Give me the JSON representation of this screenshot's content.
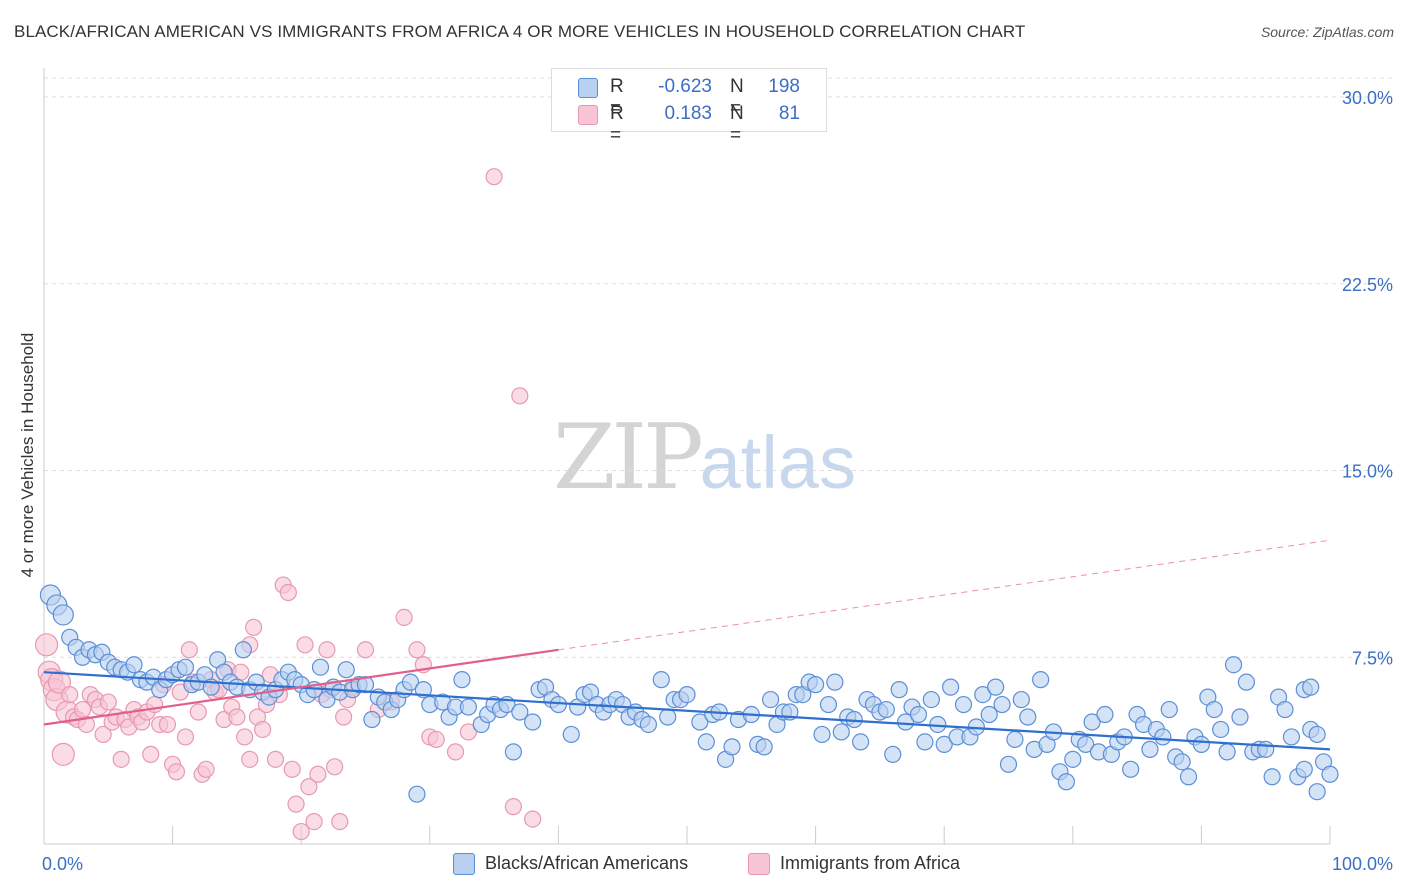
{
  "header": {
    "title": "BLACK/AFRICAN AMERICAN VS IMMIGRANTS FROM AFRICA 4 OR MORE VEHICLES IN HOUSEHOLD CORRELATION CHART",
    "source": "Source: ZipAtlas.com"
  },
  "legend": {
    "series": [
      {
        "r_label": "R =",
        "r_value": "-0.623",
        "n_label": "N =",
        "n_value": "198"
      },
      {
        "r_label": "R =",
        "r_value": "0.183",
        "n_label": "N =",
        "n_value": "81"
      }
    ]
  },
  "bottom_legend": {
    "blue": "Blacks/African Americans",
    "pink": "Immigrants from Africa"
  },
  "watermark": {
    "zip": "ZIP",
    "atlas": "atlas"
  },
  "colors": {
    "blue_fill": "#b9d0f0",
    "blue_stroke": "#5b8fd6",
    "blue_line": "#2f6fce",
    "pink_fill": "#f7c5d4",
    "pink_stroke": "#e898b2",
    "pink_line": "#e0608a",
    "grid": "#dddddd",
    "tick_label": "#3a6fc4"
  },
  "chart_data": {
    "type": "scatter",
    "title": "BLACK/AFRICAN AMERICAN VS IMMIGRANTS FROM AFRICA 4 OR MORE VEHICLES IN HOUSEHOLD CORRELATION CHART",
    "xlabel": "",
    "ylabel": "4 or more Vehicles in Household",
    "xlim": [
      0,
      100
    ],
    "ylim": [
      0,
      31
    ],
    "x_tick_labels": [
      "0.0%",
      "100.0%"
    ],
    "y_ticks": [
      7.5,
      15.0,
      22.5,
      30.0
    ],
    "y_tick_labels": [
      "7.5%",
      "15.0%",
      "22.5%",
      "30.0%"
    ],
    "series": [
      {
        "name": "Blacks/African Americans",
        "r": -0.623,
        "n": 198,
        "trend": {
          "x": [
            0,
            100
          ],
          "y": [
            6.9,
            3.8
          ]
        },
        "points": [
          [
            0.5,
            10.0
          ],
          [
            1.0,
            9.6
          ],
          [
            1.5,
            9.2
          ],
          [
            2.0,
            8.3
          ],
          [
            2.5,
            7.9
          ],
          [
            3.0,
            7.5
          ],
          [
            3.5,
            7.8
          ],
          [
            4.0,
            7.6
          ],
          [
            4.5,
            7.7
          ],
          [
            5.0,
            7.3
          ],
          [
            5.5,
            7.1
          ],
          [
            6.0,
            7.0
          ],
          [
            6.5,
            6.9
          ],
          [
            7.0,
            7.2
          ],
          [
            7.5,
            6.6
          ],
          [
            8.0,
            6.5
          ],
          [
            8.5,
            6.7
          ],
          [
            9.0,
            6.2
          ],
          [
            9.5,
            6.6
          ],
          [
            10.0,
            6.8
          ],
          [
            10.5,
            7.0
          ],
          [
            11.0,
            7.1
          ],
          [
            11.5,
            6.4
          ],
          [
            12.0,
            6.5
          ],
          [
            12.5,
            6.8
          ],
          [
            13.0,
            6.3
          ],
          [
            13.5,
            7.4
          ],
          [
            14.0,
            6.9
          ],
          [
            14.5,
            6.5
          ],
          [
            15.0,
            6.3
          ],
          [
            15.5,
            7.8
          ],
          [
            16.0,
            6.2
          ],
          [
            16.5,
            6.5
          ],
          [
            17.0,
            6.1
          ],
          [
            17.5,
            5.9
          ],
          [
            18.0,
            6.2
          ],
          [
            18.5,
            6.6
          ],
          [
            19.0,
            6.9
          ],
          [
            19.5,
            6.6
          ],
          [
            20.0,
            6.4
          ],
          [
            20.5,
            6.0
          ],
          [
            21.0,
            6.2
          ],
          [
            21.5,
            7.1
          ],
          [
            22.0,
            5.8
          ],
          [
            22.5,
            6.3
          ],
          [
            23.0,
            6.1
          ],
          [
            23.5,
            7.0
          ],
          [
            24.0,
            6.2
          ],
          [
            24.5,
            6.4
          ],
          [
            25.0,
            6.4
          ],
          [
            25.5,
            5.0
          ],
          [
            26.0,
            5.9
          ],
          [
            26.5,
            5.7
          ],
          [
            27.0,
            5.4
          ],
          [
            27.5,
            5.8
          ],
          [
            28.0,
            6.2
          ],
          [
            28.5,
            6.5
          ],
          [
            29.0,
            2.0
          ],
          [
            29.5,
            6.2
          ],
          [
            30.0,
            5.6
          ],
          [
            31.0,
            5.7
          ],
          [
            31.5,
            5.1
          ],
          [
            32.0,
            5.5
          ],
          [
            32.5,
            6.6
          ],
          [
            33.0,
            5.5
          ],
          [
            34.0,
            4.8
          ],
          [
            34.5,
            5.2
          ],
          [
            35.0,
            5.6
          ],
          [
            35.5,
            5.4
          ],
          [
            36.0,
            5.6
          ],
          [
            36.5,
            3.7
          ],
          [
            37.0,
            5.3
          ],
          [
            38.0,
            4.9
          ],
          [
            38.5,
            6.2
          ],
          [
            39.0,
            6.3
          ],
          [
            39.5,
            5.8
          ],
          [
            40.0,
            5.6
          ],
          [
            41.0,
            4.4
          ],
          [
            41.5,
            5.5
          ],
          [
            42.0,
            6.0
          ],
          [
            42.5,
            6.1
          ],
          [
            43.0,
            5.6
          ],
          [
            43.5,
            5.3
          ],
          [
            44.0,
            5.6
          ],
          [
            44.5,
            5.8
          ],
          [
            45.0,
            5.6
          ],
          [
            45.5,
            5.1
          ],
          [
            46.0,
            5.3
          ],
          [
            46.5,
            5.0
          ],
          [
            47.0,
            4.8
          ],
          [
            48.0,
            6.6
          ],
          [
            48.5,
            5.1
          ],
          [
            49.0,
            5.8
          ],
          [
            49.5,
            5.8
          ],
          [
            50.0,
            6.0
          ],
          [
            51.0,
            4.9
          ],
          [
            51.5,
            4.1
          ],
          [
            52.0,
            5.2
          ],
          [
            52.5,
            5.3
          ],
          [
            53.0,
            3.4
          ],
          [
            53.5,
            3.9
          ],
          [
            54.0,
            5.0
          ],
          [
            55.0,
            5.2
          ],
          [
            55.5,
            4.0
          ],
          [
            56.0,
            3.9
          ],
          [
            56.5,
            5.8
          ],
          [
            57.0,
            4.8
          ],
          [
            57.5,
            5.3
          ],
          [
            58.0,
            5.3
          ],
          [
            58.5,
            6.0
          ],
          [
            59.0,
            6.0
          ],
          [
            59.5,
            6.5
          ],
          [
            60.0,
            6.4
          ],
          [
            60.5,
            4.4
          ],
          [
            61.0,
            5.6
          ],
          [
            61.5,
            6.5
          ],
          [
            62.0,
            4.5
          ],
          [
            62.5,
            5.1
          ],
          [
            63.0,
            5.0
          ],
          [
            63.5,
            4.1
          ],
          [
            64.0,
            5.8
          ],
          [
            64.5,
            5.6
          ],
          [
            65.0,
            5.3
          ],
          [
            65.5,
            5.4
          ],
          [
            66.0,
            3.6
          ],
          [
            66.5,
            6.2
          ],
          [
            67.0,
            4.9
          ],
          [
            67.5,
            5.5
          ],
          [
            68.0,
            5.2
          ],
          [
            68.5,
            4.1
          ],
          [
            69.0,
            5.8
          ],
          [
            69.5,
            4.8
          ],
          [
            70.0,
            4.0
          ],
          [
            70.5,
            6.3
          ],
          [
            71.0,
            4.3
          ],
          [
            71.5,
            5.6
          ],
          [
            72.0,
            4.3
          ],
          [
            72.5,
            4.7
          ],
          [
            73.0,
            6.0
          ],
          [
            73.5,
            5.2
          ],
          [
            74.0,
            6.3
          ],
          [
            74.5,
            5.6
          ],
          [
            75.0,
            3.2
          ],
          [
            75.5,
            4.2
          ],
          [
            76.0,
            5.8
          ],
          [
            76.5,
            5.1
          ],
          [
            77.0,
            3.8
          ],
          [
            77.5,
            6.6
          ],
          [
            78.0,
            4.0
          ],
          [
            78.5,
            4.5
          ],
          [
            79.0,
            2.9
          ],
          [
            79.5,
            2.5
          ],
          [
            80.0,
            3.4
          ],
          [
            80.5,
            4.2
          ],
          [
            81.0,
            4.0
          ],
          [
            81.5,
            4.9
          ],
          [
            82.0,
            3.7
          ],
          [
            82.5,
            5.2
          ],
          [
            83.0,
            3.6
          ],
          [
            83.5,
            4.1
          ],
          [
            84.0,
            4.3
          ],
          [
            84.5,
            3.0
          ],
          [
            85.0,
            5.2
          ],
          [
            85.5,
            4.8
          ],
          [
            86.0,
            3.8
          ],
          [
            86.5,
            4.6
          ],
          [
            87.0,
            4.3
          ],
          [
            87.5,
            5.4
          ],
          [
            88.0,
            3.5
          ],
          [
            88.5,
            3.3
          ],
          [
            89.0,
            2.7
          ],
          [
            89.5,
            4.3
          ],
          [
            90.0,
            4.0
          ],
          [
            90.5,
            5.9
          ],
          [
            91.0,
            5.4
          ],
          [
            91.5,
            4.6
          ],
          [
            92.0,
            3.7
          ],
          [
            92.5,
            7.2
          ],
          [
            93.0,
            5.1
          ],
          [
            93.5,
            6.5
          ],
          [
            94.0,
            3.7
          ],
          [
            94.5,
            3.8
          ],
          [
            95.0,
            3.8
          ],
          [
            95.5,
            2.7
          ],
          [
            96.0,
            5.9
          ],
          [
            96.5,
            5.4
          ],
          [
            97.0,
            4.3
          ],
          [
            97.5,
            2.7
          ],
          [
            98.0,
            3.0
          ],
          [
            98.5,
            4.6
          ],
          [
            99.0,
            2.1
          ],
          [
            99.5,
            3.3
          ],
          [
            100.0,
            2.8
          ],
          [
            98.0,
            6.2
          ],
          [
            98.5,
            6.3
          ],
          [
            99.0,
            4.4
          ]
        ]
      },
      {
        "name": "Immigrants from Africa",
        "r": 0.183,
        "n": 81,
        "trend": {
          "x": [
            0,
            40
          ],
          "y": [
            4.8,
            7.8
          ],
          "x_ext": [
            40,
            100
          ],
          "y_ext": [
            7.8,
            12.2
          ]
        },
        "points": [
          [
            0.2,
            8.0
          ],
          [
            0.4,
            6.9
          ],
          [
            0.6,
            6.6
          ],
          [
            0.8,
            6.2
          ],
          [
            1.0,
            5.8
          ],
          [
            1.2,
            6.5
          ],
          [
            1.5,
            3.6
          ],
          [
            1.8,
            5.3
          ],
          [
            2.0,
            6.0
          ],
          [
            2.3,
            5.1
          ],
          [
            2.6,
            5.0
          ],
          [
            3.0,
            5.4
          ],
          [
            3.3,
            4.8
          ],
          [
            3.6,
            6.0
          ],
          [
            4.0,
            5.8
          ],
          [
            4.3,
            5.5
          ],
          [
            4.6,
            4.4
          ],
          [
            5.0,
            5.7
          ],
          [
            5.3,
            4.9
          ],
          [
            5.6,
            5.1
          ],
          [
            6.0,
            3.4
          ],
          [
            6.3,
            5.0
          ],
          [
            6.6,
            4.7
          ],
          [
            7.0,
            5.4
          ],
          [
            7.3,
            5.1
          ],
          [
            7.6,
            4.9
          ],
          [
            8.0,
            5.3
          ],
          [
            8.3,
            3.6
          ],
          [
            8.6,
            5.6
          ],
          [
            9.0,
            4.8
          ],
          [
            9.3,
            6.4
          ],
          [
            9.6,
            4.8
          ],
          [
            10.0,
            3.2
          ],
          [
            10.3,
            2.9
          ],
          [
            10.6,
            6.1
          ],
          [
            11.0,
            4.3
          ],
          [
            11.3,
            7.8
          ],
          [
            11.6,
            6.5
          ],
          [
            12.0,
            5.3
          ],
          [
            12.3,
            2.8
          ],
          [
            12.6,
            3.0
          ],
          [
            13.0,
            6.6
          ],
          [
            13.3,
            6.1
          ],
          [
            13.6,
            6.2
          ],
          [
            14.0,
            5.0
          ],
          [
            14.3,
            7.0
          ],
          [
            14.6,
            5.5
          ],
          [
            15.0,
            5.1
          ],
          [
            15.3,
            6.9
          ],
          [
            15.6,
            4.3
          ],
          [
            16.0,
            3.4
          ],
          [
            16.3,
            8.7
          ],
          [
            16.6,
            5.1
          ],
          [
            17.0,
            4.6
          ],
          [
            17.3,
            5.6
          ],
          [
            17.6,
            6.8
          ],
          [
            18.0,
            3.4
          ],
          [
            18.3,
            6.0
          ],
          [
            18.6,
            10.4
          ],
          [
            19.0,
            10.1
          ],
          [
            19.3,
            3.0
          ],
          [
            19.6,
            1.6
          ],
          [
            20.0,
            0.5
          ],
          [
            20.3,
            8.0
          ],
          [
            20.6,
            2.3
          ],
          [
            21.0,
            0.9
          ],
          [
            21.3,
            2.8
          ],
          [
            21.6,
            6.0
          ],
          [
            22.0,
            7.8
          ],
          [
            22.3,
            6.2
          ],
          [
            22.6,
            3.1
          ],
          [
            23.0,
            0.9
          ],
          [
            23.3,
            5.1
          ],
          [
            23.6,
            5.8
          ],
          [
            24.0,
            6.3
          ],
          [
            25.0,
            7.8
          ],
          [
            26.0,
            5.4
          ],
          [
            27.0,
            5.7
          ],
          [
            28.0,
            9.1
          ],
          [
            29.0,
            7.8
          ],
          [
            29.5,
            7.2
          ],
          [
            30.0,
            4.3
          ],
          [
            30.5,
            4.2
          ],
          [
            32.0,
            3.7
          ],
          [
            33.0,
            4.5
          ],
          [
            35.0,
            26.8
          ],
          [
            37.0,
            18.0
          ],
          [
            36.5,
            1.5
          ],
          [
            38.0,
            1.0
          ],
          [
            16.0,
            8.0
          ]
        ]
      }
    ]
  }
}
